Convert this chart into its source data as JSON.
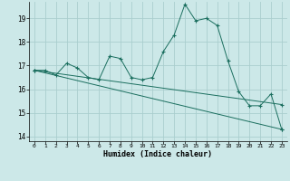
{
  "xlabel": "Humidex (Indice chaleur)",
  "bg_color": "#cce8e8",
  "grid_color": "#aacece",
  "line_color": "#1a6e5e",
  "xlim": [
    -0.5,
    23.5
  ],
  "ylim": [
    13.8,
    19.7
  ],
  "yticks": [
    14,
    15,
    16,
    17,
    18,
    19
  ],
  "xticks": [
    0,
    1,
    2,
    3,
    4,
    5,
    6,
    7,
    8,
    9,
    10,
    11,
    12,
    13,
    14,
    15,
    16,
    17,
    18,
    19,
    20,
    21,
    22,
    23
  ],
  "series": [
    {
      "x": [
        0,
        1,
        2,
        3,
        4,
        5,
        6,
        7,
        8,
        9,
        10,
        11,
        12,
        13,
        14,
        15,
        16,
        17,
        18,
        19,
        20,
        21,
        22,
        23
      ],
      "y": [
        16.8,
        16.8,
        16.6,
        17.1,
        16.9,
        16.5,
        16.4,
        17.4,
        17.3,
        16.5,
        16.4,
        16.5,
        17.6,
        18.3,
        19.6,
        18.9,
        19.0,
        18.7,
        17.2,
        15.9,
        15.3,
        15.3,
        15.8,
        14.3
      ]
    },
    {
      "x": [
        0,
        23
      ],
      "y": [
        16.8,
        14.3
      ]
    },
    {
      "x": [
        0,
        23
      ],
      "y": [
        16.8,
        15.35
      ]
    }
  ]
}
